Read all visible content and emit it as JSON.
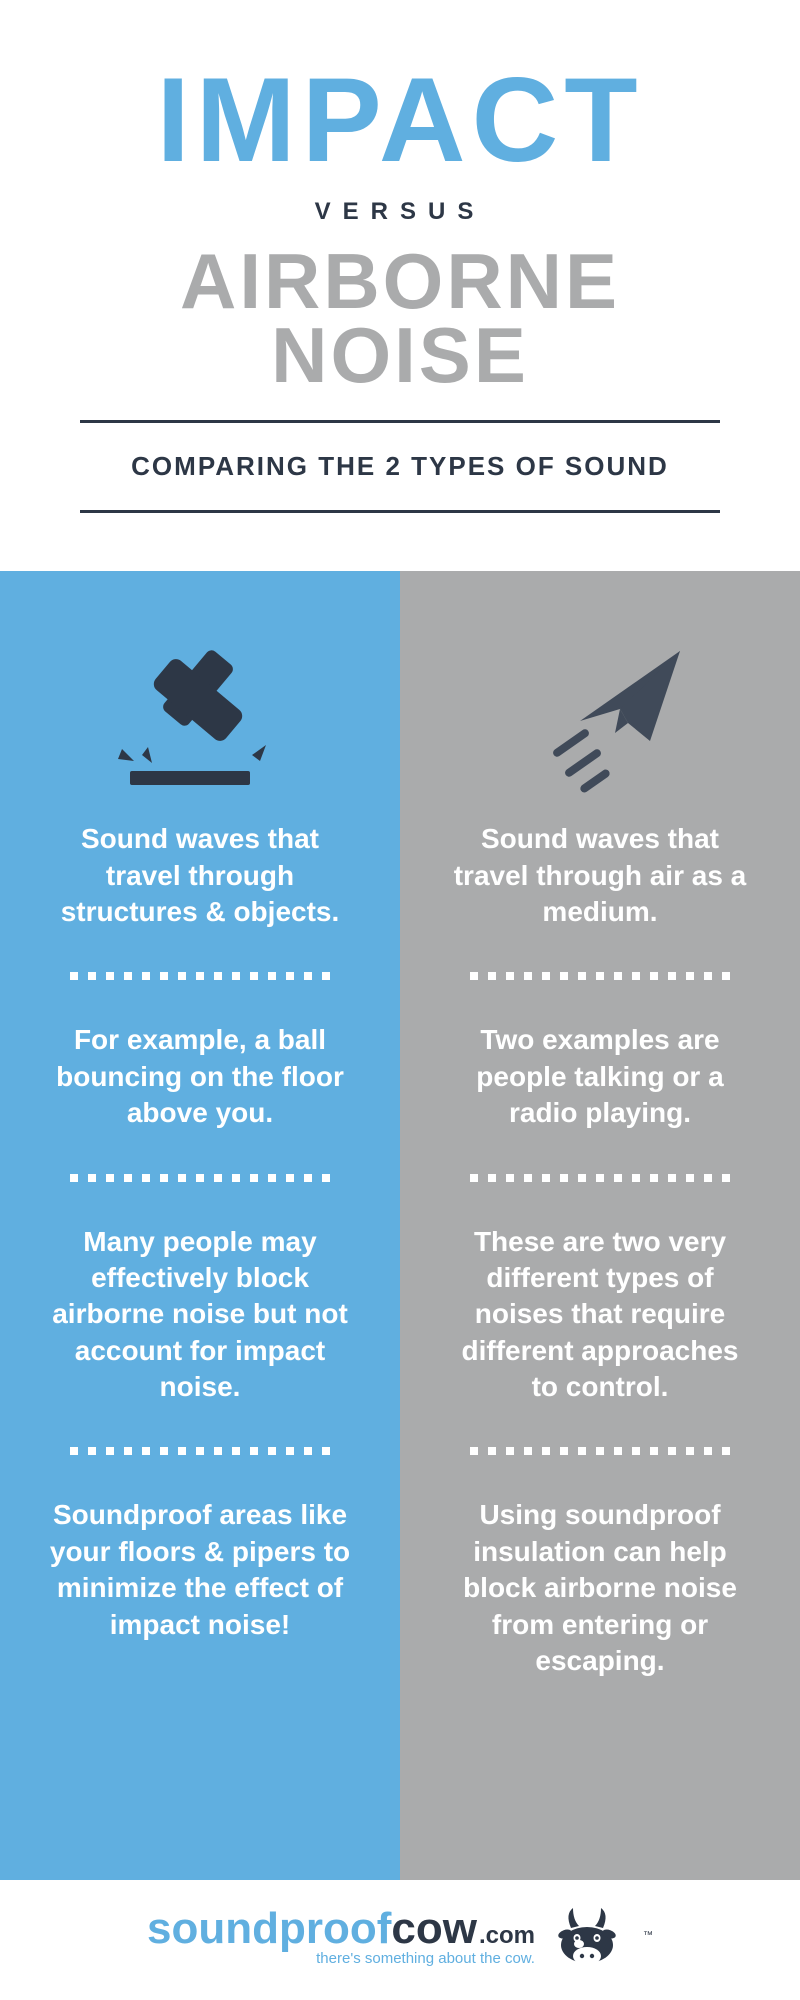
{
  "colors": {
    "blue": "#60afe0",
    "gray": "#aaabac",
    "dark": "#2d3746",
    "dark2": "#404a59",
    "white": "#ffffff"
  },
  "header": {
    "impact": "IMPACT",
    "versus": "VERSUS",
    "airborne_line1": "AIRBORNE",
    "airborne_line2": "NOISE",
    "subtitle": "COMPARING THE 2 TYPES OF SOUND"
  },
  "left": {
    "point1": "Sound waves that travel through structures & objects.",
    "point2": "For example, a ball bouncing on the floor above you.",
    "point3": "Many people may effectively block airborne noise but not account for impact noise.",
    "point4": "Soundproof areas like your floors & pipers to minimize the effect of impact noise!"
  },
  "right": {
    "point1": "Sound waves that travel through air as a medium.",
    "point2": "Two examples are people talking or a radio playing.",
    "point3": "These are two very different types of noises that require different approaches to control.",
    "point4": "Using soundproof insulation can help block airborne noise from entering or escaping."
  },
  "footer": {
    "brand_sound": "sound",
    "brand_proof": "proof",
    "brand_cow": "cow",
    "brand_com": ".com",
    "tagline": "there's something about the cow.",
    "tm": "™"
  },
  "style": {
    "title_impact_fontsize": 120,
    "title_airborne_fontsize": 78,
    "versus_fontsize": 24,
    "subtitle_fontsize": 26,
    "body_fontsize": 28,
    "dots_per_sep": 15
  }
}
